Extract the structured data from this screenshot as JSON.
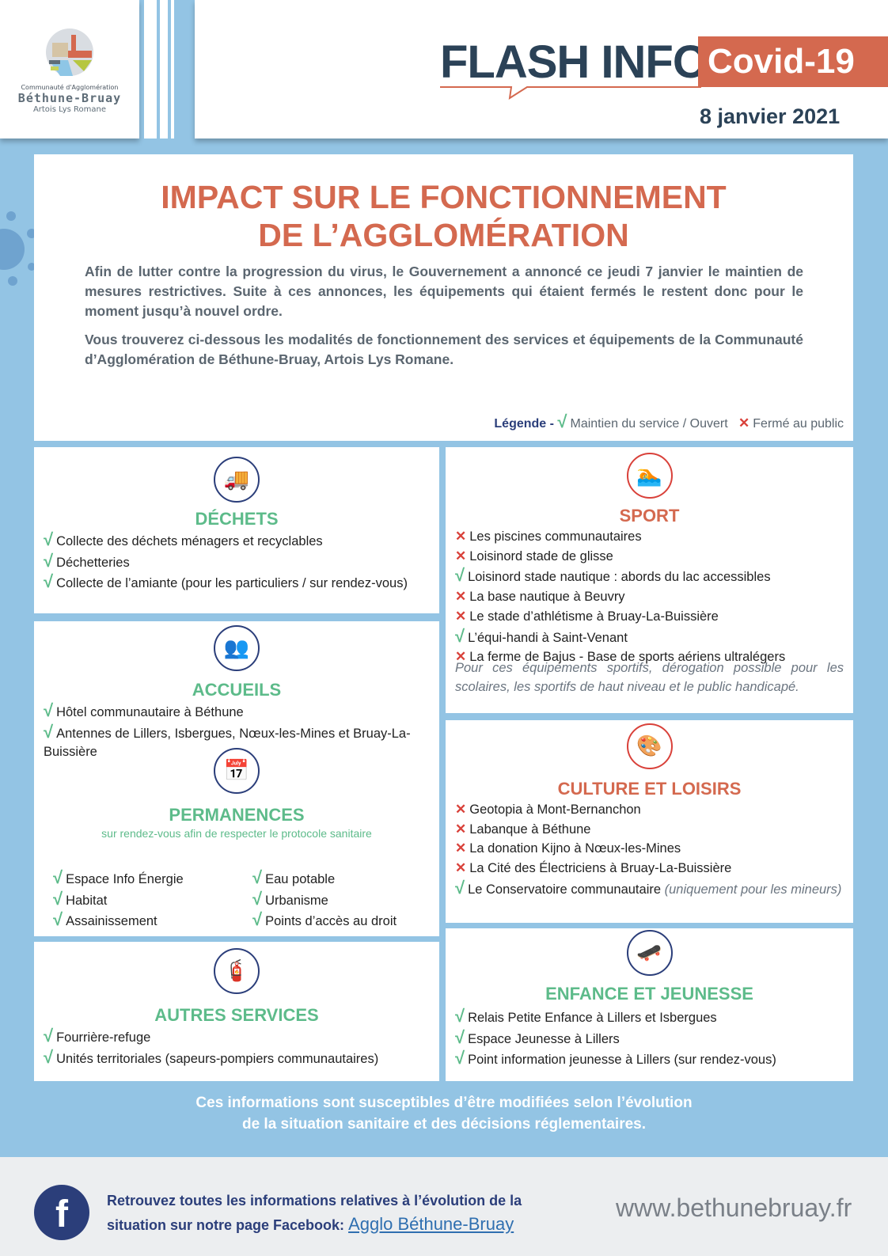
{
  "header": {
    "logo": {
      "line1": "Communauté d'Agglomération",
      "line2": "Béthune-Bruay",
      "line3": "Artois Lys Romane"
    },
    "flash": "FLASH INFO",
    "badge": "Covid-19",
    "date": "8 janvier 2021"
  },
  "intro": {
    "title_line1": "IMPACT SUR LE FONCTIONNEMENT",
    "title_line2": "DE L’AGGLOMÉRATION",
    "para1": "Afin de lutter contre la progression du virus, le Gouvernement a annoncé ce jeudi 7 janvier le maintien de mesures restrictives. Suite à ces annonces, les équipements qui étaient fermés le restent donc pour le moment jusqu’à nouvel ordre.",
    "para2": "Vous trouverez ci-dessous les modalités de fonctionnement des services et équipements de la Communauté d’Agglomération de Béthune-Bruay, Artois Lys Romane.",
    "legend": {
      "label": "Légende -",
      "open": "Maintien du service / Ouvert",
      "closed": "Fermé au public"
    }
  },
  "colors": {
    "accent": "#d4694f",
    "green": "#5dbb8a",
    "navy": "#2b3e7a",
    "background": "#93c4e4"
  },
  "sections": {
    "dechets": {
      "title": "DÉCHETS",
      "icon": "truck-icon",
      "items": [
        {
          "s": "open",
          "t": "Collecte des déchets ménagers et recyclables"
        },
        {
          "s": "open",
          "t": "Déchetteries"
        },
        {
          "s": "open",
          "t": "Collecte de l’amiante (pour les particuliers / sur rendez-vous)"
        }
      ]
    },
    "accueils": {
      "title": "ACCUEILS",
      "icon": "reception-icon",
      "items": [
        {
          "s": "open",
          "t": "Hôtel communautaire à Béthune"
        },
        {
          "s": "open",
          "t": "Antennes de Lillers, Isbergues, Nœux-les-Mines et Bruay-La-Buissière"
        }
      ]
    },
    "permanences": {
      "title": "PERMANENCES",
      "subtitle": "sur rendez-vous afin de respecter le protocole sanitaire",
      "icon": "calendar-clock-icon",
      "col1": [
        {
          "s": "open",
          "t": "Espace Info Énergie"
        },
        {
          "s": "open",
          "t": "Habitat"
        },
        {
          "s": "open",
          "t": "Assainissement"
        }
      ],
      "col2": [
        {
          "s": "open",
          "t": "Eau potable"
        },
        {
          "s": "open",
          "t": "Urbanisme"
        },
        {
          "s": "open",
          "t": "Points d’accès au droit"
        }
      ]
    },
    "autres": {
      "title": "AUTRES SERVICES",
      "icon": "firefighter-icon",
      "items": [
        {
          "s": "open",
          "t": "Fourrière-refuge"
        },
        {
          "s": "open",
          "t": "Unités territoriales (sapeurs-pompiers communautaires)"
        }
      ]
    },
    "sport": {
      "title": "SPORT",
      "icon": "swimmer-icon",
      "items": [
        {
          "s": "closed",
          "t": "Les piscines communautaires"
        },
        {
          "s": "closed",
          "t": "Loisinord stade de glisse"
        },
        {
          "s": "open",
          "t": "Loisinord stade nautique : abords du lac accessibles"
        },
        {
          "s": "closed",
          "t": "La base nautique à Beuvry"
        },
        {
          "s": "closed",
          "t": "Le stade d’athlétisme à Bruay-La-Buissière"
        },
        {
          "s": "open",
          "t": "L’équi-handi à Saint-Venant"
        },
        {
          "s": "closed",
          "t": "La ferme de Bajus - Base de sports aériens ultralégers"
        }
      ],
      "note": "Pour ces équipements sportifs, dérogation possible pour les scolaires, les sportifs de haut niveau et le public handicapé."
    },
    "culture": {
      "title": "CULTURE ET LOISIRS",
      "icon": "easel-music-icon",
      "items": [
        {
          "s": "closed",
          "t": "Geotopia à Mont-Bernanchon"
        },
        {
          "s": "closed",
          "t": "Labanque à Béthune"
        },
        {
          "s": "closed",
          "t": "La donation Kijno à Nœux-les-Mines"
        },
        {
          "s": "closed",
          "t": "La Cité des Électriciens à Bruay-La-Buissière"
        },
        {
          "s": "open",
          "t": "Le Conservatoire communautaire",
          "n": "(uniquement pour les mineurs)"
        }
      ]
    },
    "enfance": {
      "title": "ENFANCE ET JEUNESSE",
      "icon": "skater-icon",
      "items": [
        {
          "s": "open",
          "t": "Relais Petite Enfance à Lillers et Isbergues"
        },
        {
          "s": "open",
          "t": "Espace Jeunesse à Lillers"
        },
        {
          "s": "open",
          "t": "Point information jeunesse à Lillers (sur rendez-vous)"
        }
      ]
    }
  },
  "notice": {
    "line1": "Ces informations sont susceptibles d’être modifiées selon l’évolution",
    "line2": "de la situation sanitaire et des décisions réglementaires."
  },
  "footer": {
    "text1": "Retrouvez toutes les informations relatives à l’évolution de la",
    "text2": "situation sur notre page Facebook:",
    "link": "Agglo Béthune-Bruay",
    "website": "www.bethunebruay.fr"
  }
}
